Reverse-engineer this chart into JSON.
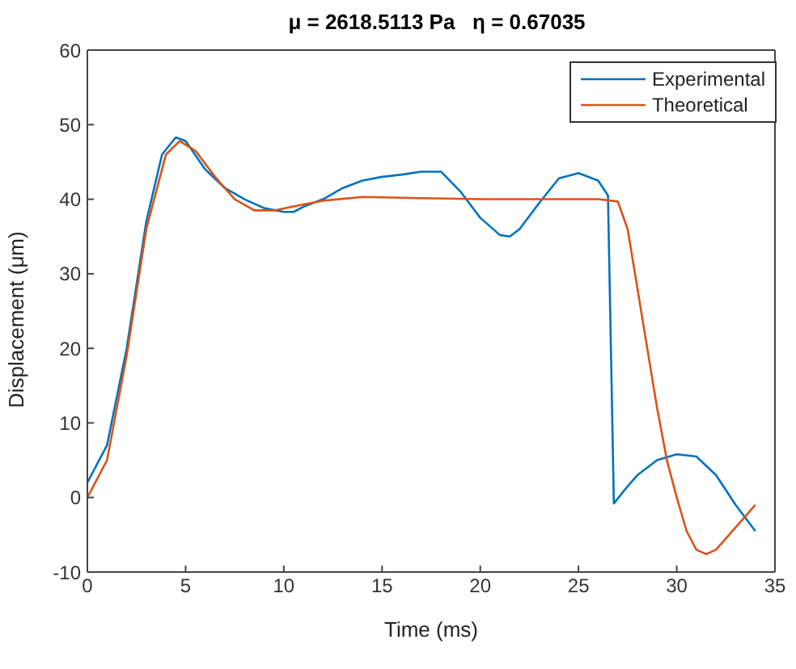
{
  "chart_data": {
    "type": "line",
    "title": "μ = 2618.5113 Pa   η = 0.67035",
    "xlabel": "Time (ms)",
    "ylabel": "Displacement (μm)",
    "xlim": [
      0,
      35
    ],
    "xticks": [
      0,
      5,
      10,
      15,
      20,
      25,
      30,
      35
    ],
    "ylim": [
      -10,
      60
    ],
    "yticks": [
      -10,
      0,
      10,
      20,
      30,
      40,
      50,
      60
    ],
    "legend": "top right",
    "line_style": "solid",
    "marker": "none",
    "series": [
      {
        "name": "Experimental",
        "color": "#0072bd",
        "x": [
          0,
          1,
          2,
          3,
          3.8,
          4.5,
          5,
          6,
          7,
          8,
          9,
          10,
          10.5,
          11,
          12,
          13,
          14,
          15,
          16,
          17,
          18,
          19,
          20,
          21,
          21.5,
          22,
          23,
          24,
          25,
          26,
          26.5,
          26.8,
          27.5,
          28,
          29,
          30,
          31,
          32,
          33,
          34
        ],
        "values": [
          2,
          7,
          20,
          37,
          46,
          48.3,
          47.8,
          44,
          41.5,
          40,
          38.8,
          38.3,
          38.3,
          39,
          40,
          41.5,
          42.5,
          43,
          43.3,
          43.7,
          43.7,
          41,
          37.5,
          35.2,
          35,
          36,
          39.5,
          42.8,
          43.5,
          42.5,
          40.5,
          -0.8,
          1.5,
          3,
          5,
          5.8,
          5.5,
          3,
          -1,
          -4.5
        ]
      },
      {
        "name": "Theoretical",
        "color": "#d95319",
        "x": [
          0,
          1,
          2,
          3,
          4,
          4.7,
          5.5,
          6.5,
          7.5,
          8.5,
          9.5,
          11,
          12,
          14,
          16,
          20,
          26,
          27,
          27.5,
          28,
          28.5,
          29,
          29.5,
          30,
          30.5,
          31,
          31.5,
          32,
          33,
          34
        ],
        "values": [
          0,
          5,
          19,
          36,
          46,
          47.8,
          46.5,
          43,
          40,
          38.5,
          38.5,
          39.3,
          39.8,
          40.3,
          40.2,
          40,
          40,
          39.7,
          36,
          28,
          20,
          12,
          5,
          0,
          -4.5,
          -7,
          -7.6,
          -7,
          -4,
          -1
        ]
      }
    ]
  }
}
